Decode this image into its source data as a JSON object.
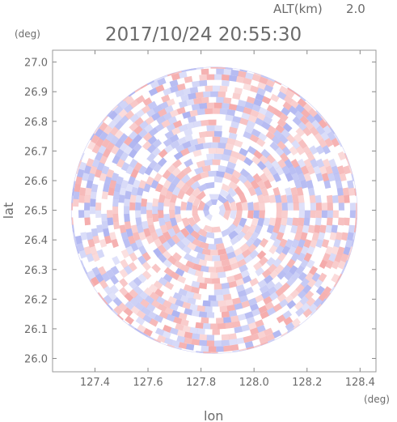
{
  "header": {
    "alt_label": "ALT(km)",
    "alt_value": "2.0",
    "datetime": "2017/10/24 20:55:30"
  },
  "chart_data": {
    "type": "heatmap",
    "title": "2017/10/24 20:55:30",
    "xlabel": "lon",
    "ylabel": "lat",
    "x_unit": "(deg)",
    "y_unit": "(deg)",
    "xlim": [
      127.24,
      128.46
    ],
    "ylim": [
      25.955,
      27.04
    ],
    "x_ticks": [
      "127.4",
      "127.6",
      "127.8",
      "128.0",
      "128.2",
      "128.4"
    ],
    "y_ticks": [
      "26.0",
      "26.1",
      "26.2",
      "26.3",
      "26.4",
      "26.5",
      "26.6",
      "26.7",
      "26.8",
      "26.9",
      "27.0"
    ],
    "center": [
      127.85,
      26.5
    ],
    "radius_deg": 0.54,
    "colors": {
      "positive": "#f4a6a6",
      "negative": "#aab0f0",
      "neutral": "#ffffff",
      "axis": "#888888"
    }
  }
}
